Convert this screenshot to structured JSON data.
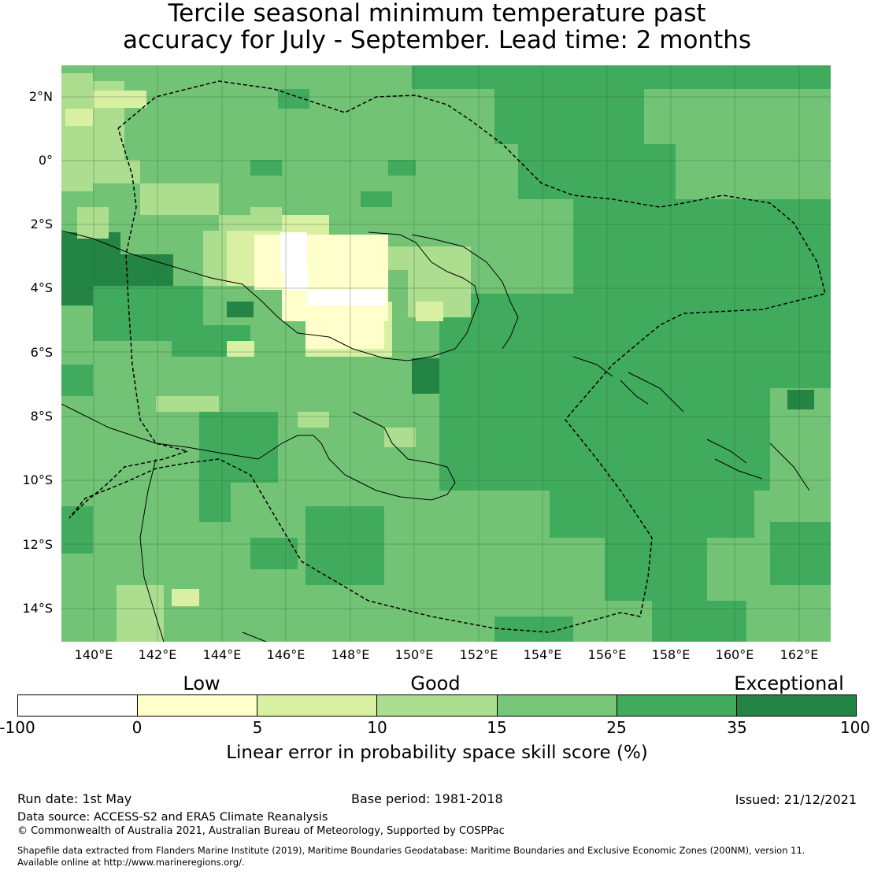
{
  "title": {
    "line1": "Tercile seasonal minimum temperature past",
    "line2": "accuracy for July - September. Lead time: 2 months"
  },
  "map": {
    "lat_labels": [
      "2°N",
      "0°",
      "2°S",
      "4°S",
      "6°S",
      "8°S",
      "10°S",
      "12°S",
      "14°S"
    ],
    "lon_labels": [
      "140°E",
      "142°E",
      "144°E",
      "146°E",
      "148°E",
      "150°E",
      "152°E",
      "154°E",
      "156°E",
      "158°E",
      "160°E",
      "162°E"
    ],
    "background_color": "#73c376",
    "grid": true
  },
  "legend": {
    "categories": [
      "Low",
      "Good",
      "Exceptional"
    ],
    "colors": [
      "#ffffff",
      "#ffffcc",
      "#d9f0a3",
      "#addd8e",
      "#78c679",
      "#41ab5d",
      "#238443"
    ],
    "ticks": [
      "-100",
      "0",
      "5",
      "10",
      "15",
      "25",
      "35",
      "100"
    ],
    "label": "Linear error in probability space skill score (%)"
  },
  "footer": {
    "run_date": "Run date: 1st May",
    "base_period": "Base period: 1981-2018",
    "issued": "Issued: 21/12/2021",
    "data_source": "Data source: ACCESS-S2 and ERA5 Climate Reanalysis",
    "copyright": "© Commonwealth of Australia 2021, Australian Bureau of Meteorology, Supported by COSPPac",
    "shapefile_line1": "Shapefile data extracted from Flanders Marine Institute (2019), Maritime Boundaries Geodatabase: Maritime Boundaries and Exclusive Economic Zones (200NM), version 11.",
    "shapefile_line2": "Available online at http://www.marineregions.org/."
  }
}
